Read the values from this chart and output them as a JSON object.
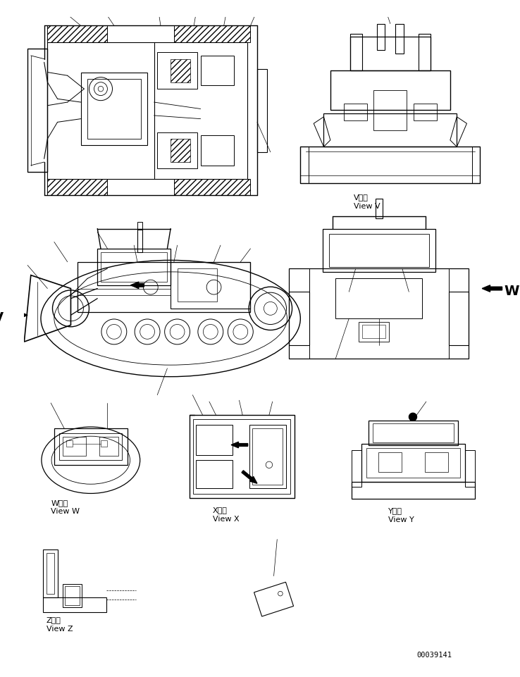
{
  "bg_color": "#ffffff",
  "lc": "#000000",
  "part_number": "00039141",
  "lw_main": 0.8,
  "lw_thin": 0.5,
  "lw_thick": 1.2,
  "fig_w": 7.38,
  "fig_h": 9.62,
  "dpi": 100,
  "label_V_jp": "V　視",
  "label_V_en": "View V",
  "label_W_jp": "W　視",
  "label_W_en": "View W",
  "label_X_jp": "X　視",
  "label_X_en": "View X",
  "label_Y_jp": "Y　視",
  "label_Y_en": "View Y",
  "label_Z_jp": "Z　視",
  "label_Z_en": "View Z"
}
